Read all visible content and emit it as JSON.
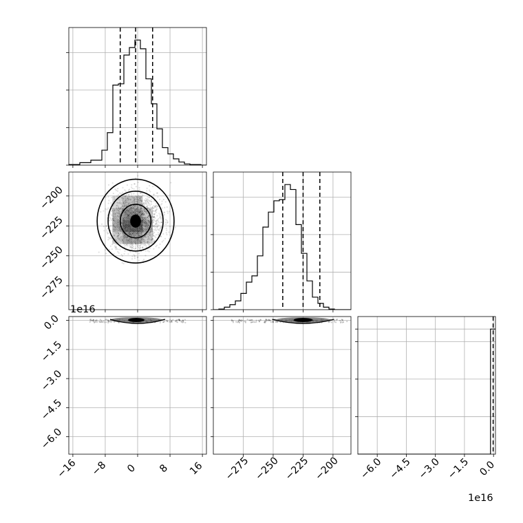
{
  "chart_data": {
    "type": "corner",
    "grid": true,
    "panels": [
      {
        "id": "hist-param1",
        "type": "histogram",
        "xlim": [
          -17,
          17
        ],
        "bins_left": -17,
        "bin_width": 1.36,
        "counts": [
          0.005,
          0.005,
          0.02,
          0.02,
          0.04,
          0.04,
          0.12,
          0.26,
          0.64,
          0.65,
          0.88,
          0.94,
          1.0,
          0.93,
          0.69,
          0.49,
          0.29,
          0.14,
          0.09,
          0.05,
          0.025,
          0.01,
          0.005,
          0.005,
          0.0
        ],
        "quantiles": [
          -4.3,
          -0.5,
          3.7
        ],
        "ylim": [
          0,
          1.1
        ],
        "yticks": [
          0.0,
          0.3,
          0.6,
          0.9
        ],
        "xticks": [
          -16,
          -8,
          0,
          8,
          16
        ]
      },
      {
        "id": "scatter-param1-param2",
        "type": "density-contour",
        "xlim": [
          -17,
          17
        ],
        "ylim": [
          -295,
          -180
        ],
        "center": [
          -0.5,
          -221
        ],
        "contour_radii": [
          {
            "rx": 1.2,
            "ry": 5
          },
          {
            "rx": 3.8,
            "ry": 14
          },
          {
            "rx": 6.8,
            "ry": 25
          },
          {
            "rx": 9.5,
            "ry": 35
          }
        ],
        "xticks": [
          -16,
          -8,
          0,
          8,
          16
        ],
        "yticks": [
          -275,
          -250,
          -225,
          -200
        ],
        "ytick_labels": [
          "−275",
          "−250",
          "−225",
          "−200"
        ]
      },
      {
        "id": "hist-param2",
        "type": "histogram",
        "xlim": [
          -300,
          -185
        ],
        "bins_left": -300,
        "bin_width": 4.6,
        "counts": [
          0.0,
          0.005,
          0.02,
          0.04,
          0.07,
          0.13,
          0.22,
          0.27,
          0.43,
          0.66,
          0.78,
          0.87,
          0.88,
          1.0,
          0.96,
          0.68,
          0.45,
          0.23,
          0.1,
          0.05,
          0.02,
          0.005,
          0.0,
          0.0,
          0.0
        ],
        "quantiles": [
          -242,
          -225,
          -211
        ],
        "ylim": [
          0,
          1.1
        ],
        "yticks": [
          0.0,
          0.3,
          0.6,
          0.9
        ],
        "xticks": [
          -275,
          -250,
          -225,
          -200
        ],
        "xtick_labels": [
          "−275",
          "−250",
          "−225",
          "−200"
        ]
      },
      {
        "id": "scatter-param1-param3",
        "type": "density-contour",
        "xlim": [
          -17,
          17
        ],
        "ylim": [
          -6.9,
          0.2
        ],
        "offset_label": "1e16",
        "xticks": [
          -16,
          -8,
          0,
          8,
          16
        ],
        "xtick_labels": [
          "−16",
          "−8",
          "0",
          "8",
          "16"
        ],
        "yticks": [
          0.0,
          -1.5,
          -3.0,
          -4.5,
          -6.0
        ],
        "ytick_labels": [
          "0.0",
          "−1.5",
          "−3.0",
          "−4.5",
          "−6.0"
        ]
      },
      {
        "id": "scatter-param2-param3",
        "type": "density-contour",
        "xlim": [
          -300,
          -185
        ],
        "ylim": [
          -6.9,
          0.2
        ],
        "xticks": [
          -275,
          -250,
          -225,
          -200
        ],
        "xtick_labels": [
          "−275",
          "−250",
          "−225",
          "−200"
        ]
      },
      {
        "id": "hist-param3",
        "type": "histogram",
        "xlim": [
          -7.0,
          0.1
        ],
        "bin_value": -0.05,
        "quantiles": [
          -0.02
        ],
        "offset_label": "1e16",
        "ylim": [
          0,
          1.1
        ],
        "xticks": [
          -6.0,
          -4.5,
          -3.0,
          -1.5,
          0.0
        ],
        "xtick_labels": [
          "−6.0",
          "−4.5",
          "−3.0",
          "−1.5",
          "0.0"
        ]
      }
    ]
  }
}
